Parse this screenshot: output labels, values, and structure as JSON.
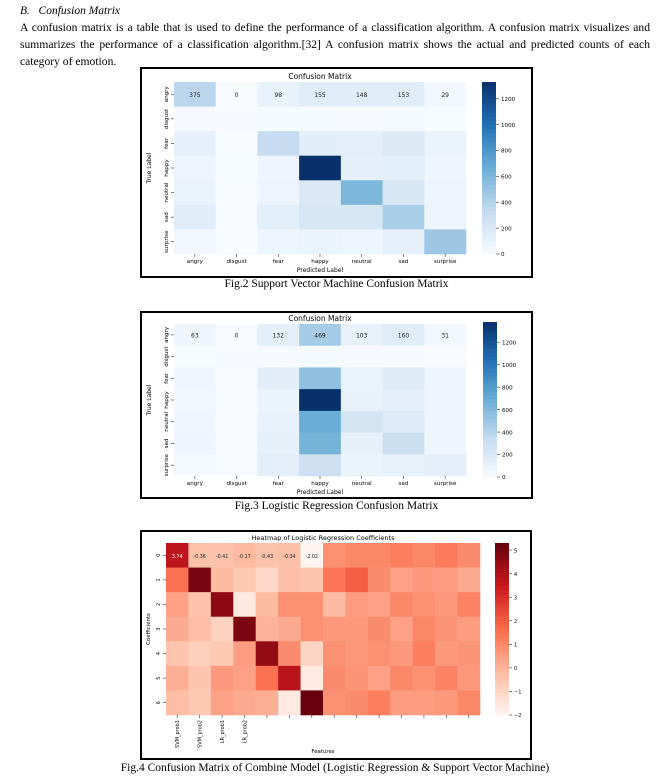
{
  "section": {
    "number": "B.",
    "title": "Confusion Matrix"
  },
  "paragraph": "A confusion matrix is a table that is used to define the performance of a classification algorithm. A confusion matrix visualizes and summarizes the performance of a classification algorithm.[32] A confusion matrix shows the actual and predicted counts of each category of emotion.",
  "captions": {
    "fig2": "Fig.2 Support Vector Machine Confusion Matrix",
    "fig3": "Fig.3 Logistic Regression Confusion Matrix",
    "fig4": "Fig.4 Confusion Matrix of Combine Model (Logistic Regression & Support Vector Machine)"
  },
  "colors": {
    "blue_dark": "#08306b",
    "red_dark": "#67000d"
  },
  "chart_data": [
    {
      "type": "heatmap",
      "title": "Confusion Matrix",
      "xlabel": "Predicted Label",
      "ylabel": "True Label",
      "x_categories": [
        "angry",
        "disgust",
        "fear",
        "happy",
        "neutral",
        "sad",
        "surprise"
      ],
      "y_categories": [
        "angry",
        "disgust",
        "fear",
        "happy",
        "neutral",
        "sad",
        "surprise"
      ],
      "annotated_row": [
        "375",
        "0",
        "98",
        "155",
        "148",
        "153",
        "29"
      ],
      "values": [
        [
          375,
          0,
          98,
          155,
          148,
          153,
          29
        ],
        [
          10,
          8,
          12,
          14,
          10,
          12,
          4
        ],
        [
          110,
          2,
          330,
          150,
          130,
          180,
          90
        ],
        [
          70,
          5,
          60,
          1330,
          120,
          140,
          60
        ],
        [
          90,
          2,
          70,
          190,
          600,
          210,
          70
        ],
        [
          150,
          3,
          140,
          220,
          220,
          430,
          70
        ],
        [
          40,
          1,
          60,
          80,
          60,
          110,
          480
        ]
      ],
      "colorbar": {
        "min": 0,
        "max": 1330,
        "ticks": [
          0,
          200,
          400,
          600,
          800,
          1000,
          1200
        ]
      },
      "colormap": "Blues"
    },
    {
      "type": "heatmap",
      "title": "Confusion Matrix",
      "xlabel": "Predicted Label",
      "ylabel": "True Label",
      "x_categories": [
        "angry",
        "disgust",
        "fear",
        "happy",
        "neutral",
        "sad",
        "surprise"
      ],
      "y_categories": [
        "angry",
        "disgust",
        "fear",
        "happy",
        "neutral",
        "sad",
        "surprise"
      ],
      "annotated_row": [
        "63",
        "0",
        "132",
        "469",
        "103",
        "160",
        "31"
      ],
      "values": [
        [
          63,
          0,
          132,
          469,
          103,
          160,
          31
        ],
        [
          4,
          6,
          8,
          18,
          6,
          8,
          2
        ],
        [
          50,
          1,
          150,
          550,
          90,
          170,
          60
        ],
        [
          40,
          2,
          80,
          1380,
          100,
          140,
          60
        ],
        [
          50,
          1,
          100,
          700,
          250,
          180,
          60
        ],
        [
          60,
          2,
          120,
          650,
          120,
          300,
          60
        ],
        [
          20,
          1,
          140,
          290,
          80,
          110,
          130
        ]
      ],
      "colorbar": {
        "min": 0,
        "max": 1380,
        "ticks": [
          0,
          200,
          400,
          600,
          800,
          1000,
          1200
        ]
      },
      "colormap": "Blues"
    },
    {
      "type": "heatmap",
      "title": "Heatmap of Logistic Regression Coefficients",
      "xlabel": "Features",
      "ylabel": "Coefficients",
      "x_categories": [
        "SVM_prob1",
        "SVM_prob2",
        "LR_prob1",
        "LR_prob2",
        "",
        "",
        "",
        "",
        "",
        "",
        "",
        "",
        "",
        ""
      ],
      "y_categories": [
        "0",
        "1",
        "2",
        "3",
        "4",
        "5",
        "6"
      ],
      "annotated_row": [
        "3.74",
        "-0.36",
        "-0.41",
        "-0.17",
        "-0.43",
        "-0.34",
        "-2.02"
      ],
      "values": [
        [
          3.74,
          -0.36,
          -0.41,
          -0.17,
          -0.43,
          -0.34,
          -2.02,
          0.8,
          1.0,
          1.0,
          1.2,
          1.0,
          1.3,
          0.9
        ],
        [
          1.5,
          5.0,
          -0.2,
          -0.6,
          -1.1,
          -0.3,
          -0.5,
          1.4,
          1.9,
          0.9,
          0.4,
          0.6,
          0.5,
          0.2
        ],
        [
          0.4,
          -0.4,
          4.6,
          -1.6,
          -0.2,
          0.8,
          0.8,
          -0.2,
          0.5,
          0.4,
          1.0,
          0.8,
          0.6,
          1.1
        ],
        [
          0.2,
          -0.3,
          -0.9,
          4.9,
          0.0,
          0.2,
          0.8,
          0.6,
          0.6,
          0.9,
          0.4,
          1.0,
          0.7,
          0.5
        ],
        [
          -0.5,
          -0.8,
          -0.6,
          0.5,
          4.5,
          0.9,
          -1.0,
          0.8,
          0.6,
          0.8,
          0.6,
          1.2,
          0.6,
          0.7
        ],
        [
          0.1,
          -0.5,
          0.6,
          0.4,
          1.5,
          3.8,
          -1.7,
          0.9,
          0.7,
          0.4,
          1.0,
          0.8,
          1.1,
          0.6
        ],
        [
          -0.3,
          -0.6,
          0.4,
          0.2,
          0.1,
          -1.6,
          5.3,
          0.8,
          0.9,
          1.2,
          0.5,
          0.5,
          0.6,
          1.0
        ]
      ],
      "colorbar": {
        "min": -2,
        "max": 5.3,
        "ticks": [
          -2,
          -1,
          0,
          1,
          2,
          3,
          4,
          5
        ]
      },
      "colormap": "Reds"
    }
  ]
}
